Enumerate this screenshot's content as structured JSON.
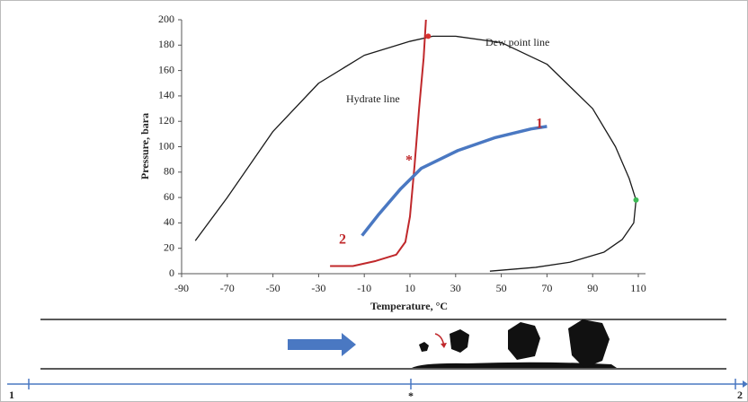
{
  "chart_data": {
    "type": "line",
    "xlabel": "Temperature, °C",
    "ylabel": "Pressure, bara",
    "xlim": [
      -90,
      110
    ],
    "ylim": [
      0,
      200
    ],
    "xticks": [
      -90,
      -70,
      -50,
      -30,
      -10,
      10,
      30,
      50,
      70,
      90,
      110
    ],
    "yticks": [
      0,
      20,
      40,
      60,
      80,
      100,
      120,
      140,
      160,
      180,
      200
    ],
    "series": [
      {
        "name": "Dew point line",
        "color": "#1a1a1a",
        "x": [
          -84,
          -70,
          -50,
          -30,
          -10,
          10,
          20,
          30,
          50,
          70,
          90,
          100,
          106,
          109,
          108,
          103,
          95,
          80,
          65,
          45
        ],
        "values": [
          26,
          60,
          112,
          150,
          172,
          183,
          187,
          187,
          182,
          165,
          130,
          100,
          75,
          58,
          40,
          27,
          17,
          9,
          5,
          2
        ]
      },
      {
        "name": "Hydrate line",
        "color": "#c0282b",
        "x": [
          -25,
          -15,
          -5,
          4,
          8,
          10,
          12,
          14,
          16,
          17
        ],
        "values": [
          6,
          6,
          10,
          15,
          25,
          45,
          85,
          130,
          170,
          200
        ]
      },
      {
        "color": "#4a78c2",
        "x": [
          -11,
          -4,
          6,
          15,
          31,
          47,
          63,
          70
        ],
        "values": [
          30,
          46,
          67,
          83,
          97,
          107,
          114,
          116
        ]
      }
    ],
    "points": [
      {
        "x": 18,
        "y": 187,
        "color": "#d8322f"
      },
      {
        "x": 109,
        "y": 58,
        "color": "#3cba54"
      }
    ],
    "annotations": [
      "1",
      "2",
      "*"
    ]
  },
  "pipeline": {
    "start_label": "1",
    "mid_label": "*",
    "end_label": "2"
  }
}
